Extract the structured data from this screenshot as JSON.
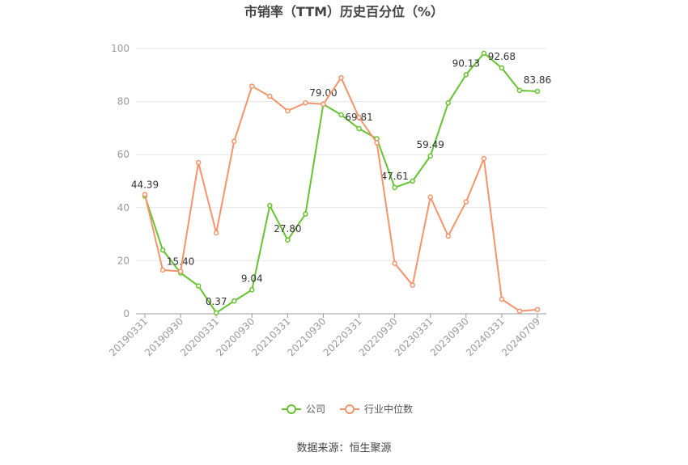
{
  "chart_data": {
    "type": "line",
    "title": "市销率（TTM）历史百分位（%）",
    "source": "数据来源：恒生聚源",
    "categories": [
      "20190331",
      null,
      "20190930",
      null,
      "20200331",
      null,
      "20200930",
      null,
      "20210331",
      null,
      "20210930",
      null,
      "20220331",
      null,
      "20220930",
      null,
      "20230331",
      null,
      "20230930",
      null,
      "20240331",
      null,
      "20240709"
    ],
    "series": [
      {
        "name": "公司",
        "color": "#66c42e",
        "values": [
          44.39,
          24,
          15.4,
          10.5,
          0.37,
          4.8,
          9.04,
          40.8,
          27.8,
          37.6,
          79,
          75,
          69.81,
          66,
          47.61,
          50,
          59.49,
          79.5,
          90.13,
          98.2,
          92.68,
          84.2,
          83.86
        ],
        "value_labels": [
          "44.39",
          null,
          "15.40",
          null,
          "0.37",
          null,
          "9.04",
          null,
          "27.80",
          null,
          "79.00",
          null,
          "69.81",
          null,
          "47.61",
          null,
          "59.49",
          null,
          "90.13",
          null,
          "92.68",
          null,
          "83.86"
        ]
      },
      {
        "name": "行业中位数",
        "color": "#f5936a",
        "values": [
          45,
          16.5,
          16,
          57,
          30.5,
          65,
          85.8,
          82,
          76.5,
          79.5,
          79,
          89,
          74,
          64.5,
          19,
          10.8,
          44,
          29.3,
          42.2,
          58.5,
          5.5,
          1,
          1.6
        ]
      }
    ],
    "ylim": [
      0,
      100
    ],
    "yticks": [
      0,
      20,
      40,
      60,
      80,
      100
    ],
    "grid": true,
    "legend": "bottom"
  }
}
